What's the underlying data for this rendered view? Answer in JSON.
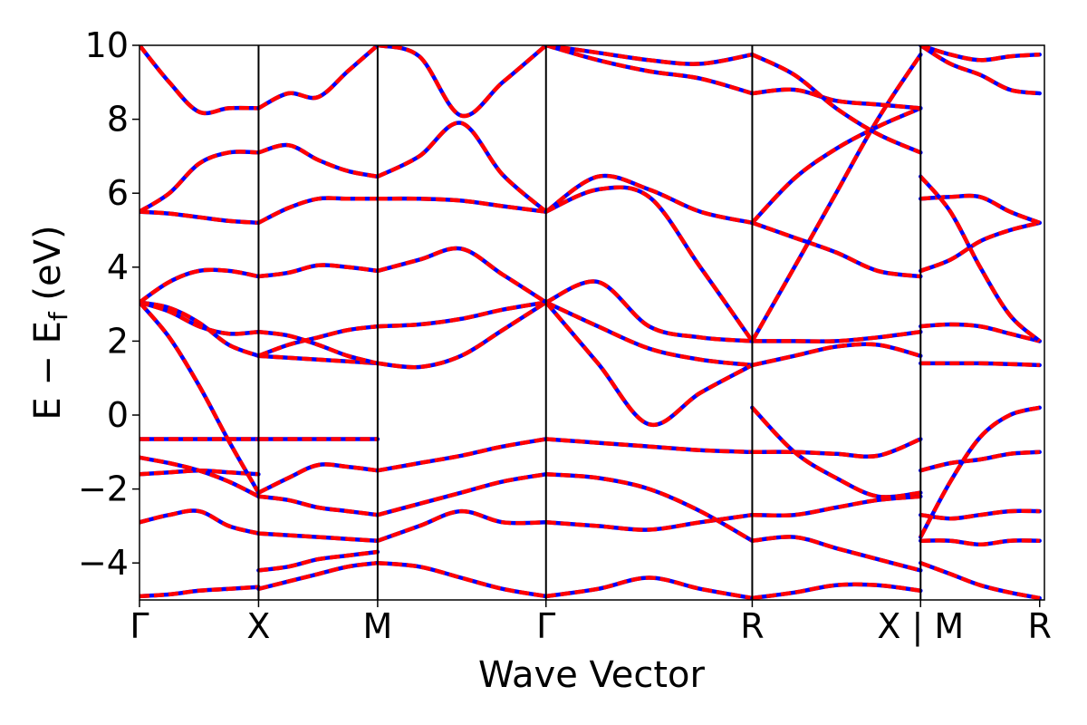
{
  "chart_data": {
    "type": "line",
    "xlabel": "Wave Vector",
    "ylabel_main": "E − E",
    "ylabel_sub": "f",
    "ylabel_unit": " (eV)",
    "ylim": [
      -5,
      10
    ],
    "yticks": [
      -4,
      -2,
      0,
      2,
      4,
      6,
      8,
      10
    ],
    "ytick_labels": [
      "−4",
      "−2",
      "0",
      "2",
      "4",
      "6",
      "8",
      "10"
    ],
    "xlim": [
      0,
      7.6
    ],
    "kpoints": [
      {
        "x": 0.0,
        "label": "Γ"
      },
      {
        "x": 1.0,
        "label": "X"
      },
      {
        "x": 2.0,
        "label": "M"
      },
      {
        "x": 3.414,
        "label": "Γ"
      },
      {
        "x": 5.146,
        "label": "R"
      },
      {
        "x": 6.56,
        "label": "X | M"
      },
      {
        "x": 7.56,
        "label": "R"
      }
    ],
    "colors": {
      "series_a": "#ff0000",
      "series_b": "#0000ff",
      "frame": "#000000"
    },
    "series": [
      {
        "segment": "Γ-X",
        "x": [
          0,
          0.25,
          0.5,
          0.75,
          1.0
        ],
        "bands": [
          [
            -4.9,
            -4.85,
            -4.75,
            -4.7,
            -4.65
          ],
          [
            -2.9,
            -2.7,
            -2.6,
            -3.0,
            -3.2
          ],
          [
            -1.6,
            -1.55,
            -1.5,
            -1.55,
            -1.6
          ],
          [
            -1.15,
            -1.3,
            -1.5,
            -1.8,
            -2.2
          ],
          [
            -0.65,
            -0.65,
            -0.65,
            -0.65,
            -0.65
          ],
          [
            3.05,
            2.1,
            0.8,
            -0.7,
            -2.1
          ],
          [
            3.05,
            2.9,
            2.5,
            1.9,
            1.6
          ],
          [
            3.05,
            2.8,
            2.4,
            2.2,
            2.25
          ],
          [
            3.05,
            3.6,
            3.9,
            3.9,
            3.75
          ],
          [
            5.5,
            5.45,
            5.35,
            5.25,
            5.2
          ],
          [
            5.5,
            6.0,
            6.8,
            7.1,
            7.1
          ],
          [
            10.0,
            9.0,
            8.2,
            8.3,
            8.3
          ]
        ]
      },
      {
        "segment": "X-M",
        "x": [
          1.0,
          1.25,
          1.5,
          1.75,
          2.0
        ],
        "bands": [
          [
            -4.7,
            -4.5,
            -4.3,
            -4.1,
            -4.0
          ],
          [
            -4.2,
            -4.1,
            -3.9,
            -3.8,
            -3.7
          ],
          [
            -3.2,
            -3.25,
            -3.3,
            -3.35,
            -3.4
          ],
          [
            -2.2,
            -2.3,
            -2.5,
            -2.6,
            -2.7
          ],
          [
            -2.1,
            -1.7,
            -1.35,
            -1.4,
            -1.5
          ],
          [
            -0.65,
            -0.65,
            -0.65,
            -0.65,
            -0.65
          ],
          [
            1.6,
            1.55,
            1.5,
            1.45,
            1.4
          ],
          [
            1.6,
            1.9,
            2.1,
            2.3,
            2.4
          ],
          [
            2.25,
            2.15,
            1.9,
            1.6,
            1.4
          ],
          [
            3.75,
            3.85,
            4.05,
            4.0,
            3.9
          ],
          [
            5.2,
            5.6,
            5.85,
            5.85,
            5.85
          ],
          [
            7.1,
            7.3,
            6.9,
            6.6,
            6.45
          ],
          [
            8.3,
            8.7,
            8.6,
            9.3,
            10.0
          ]
        ]
      },
      {
        "segment": "M-Γ",
        "x": [
          2.0,
          2.35,
          2.7,
          3.05,
          3.414
        ],
        "bands": [
          [
            -4.0,
            -4.1,
            -4.4,
            -4.7,
            -4.9
          ],
          [
            -3.4,
            -3.0,
            -2.6,
            -2.9,
            -2.9
          ],
          [
            -2.7,
            -2.4,
            -2.1,
            -1.8,
            -1.6
          ],
          [
            -1.5,
            -1.3,
            -1.1,
            -0.85,
            -0.65
          ],
          [
            1.4,
            1.3,
            1.6,
            2.3,
            3.05
          ],
          [
            2.4,
            2.45,
            2.6,
            2.85,
            3.05
          ],
          [
            3.9,
            4.2,
            4.5,
            3.8,
            3.05
          ],
          [
            5.85,
            5.85,
            5.8,
            5.65,
            5.5
          ],
          [
            6.45,
            7.0,
            7.9,
            6.5,
            5.5
          ],
          [
            10.0,
            9.7,
            8.1,
            9.0,
            10.0
          ]
        ]
      },
      {
        "segment": "Γ-R",
        "x": [
          3.414,
          3.85,
          4.28,
          4.71,
          5.146
        ],
        "bands": [
          [
            -4.9,
            -4.7,
            -4.4,
            -4.7,
            -4.95
          ],
          [
            -2.9,
            -3.0,
            -3.1,
            -2.9,
            -2.7
          ],
          [
            -1.6,
            -1.7,
            -2.0,
            -2.6,
            -3.4
          ],
          [
            -0.65,
            -0.75,
            -0.85,
            -0.95,
            -1.0
          ],
          [
            3.05,
            2.4,
            1.8,
            1.5,
            1.35
          ],
          [
            3.05,
            3.6,
            2.4,
            2.1,
            2.0
          ],
          [
            3.05,
            1.4,
            -0.25,
            0.6,
            1.35
          ],
          [
            5.5,
            6.45,
            6.1,
            5.5,
            5.2
          ],
          [
            5.5,
            6.1,
            5.9,
            4.0,
            2.0
          ],
          [
            10.0,
            9.6,
            9.3,
            9.1,
            8.7
          ],
          [
            10.0,
            9.8,
            9.6,
            9.5,
            9.75
          ]
        ]
      },
      {
        "segment": "R-X",
        "x": [
          5.146,
          5.5,
          5.85,
          6.2,
          6.56
        ],
        "bands": [
          [
            -4.95,
            -4.8,
            -4.6,
            -4.6,
            -4.75
          ],
          [
            -3.4,
            -3.3,
            -3.6,
            -3.9,
            -4.2
          ],
          [
            -2.7,
            -2.7,
            -2.5,
            -2.3,
            -2.2
          ],
          [
            -1.0,
            -1.0,
            -1.05,
            -1.1,
            -0.65
          ],
          [
            1.35,
            1.6,
            1.85,
            1.9,
            1.6
          ],
          [
            2.0,
            2.0,
            2.0,
            2.1,
            2.25
          ],
          [
            0.2,
            -1.0,
            -1.7,
            -2.2,
            -2.1
          ],
          [
            5.2,
            4.8,
            4.4,
            3.9,
            3.75
          ],
          [
            2.0,
            4.0,
            6.0,
            8.0,
            9.75
          ],
          [
            5.2,
            6.4,
            7.2,
            7.8,
            8.3
          ],
          [
            8.7,
            8.8,
            8.5,
            8.4,
            8.3
          ],
          [
            9.75,
            9.2,
            8.3,
            7.6,
            7.1
          ]
        ]
      },
      {
        "segment": "M-R",
        "x": [
          6.56,
          6.81,
          7.06,
          7.31,
          7.56
        ],
        "bands": [
          [
            -4.0,
            -4.3,
            -4.6,
            -4.8,
            -4.95
          ],
          [
            -3.4,
            -3.4,
            -3.5,
            -3.4,
            -3.4
          ],
          [
            -2.7,
            -2.8,
            -2.7,
            -2.6,
            -2.6
          ],
          [
            -1.5,
            -1.3,
            -1.2,
            -1.05,
            -1.0
          ],
          [
            1.4,
            1.4,
            1.4,
            1.38,
            1.35
          ],
          [
            2.4,
            2.45,
            2.4,
            2.2,
            2.0
          ],
          [
            -3.3,
            -1.8,
            -0.6,
            0.0,
            0.2
          ],
          [
            3.9,
            4.2,
            4.7,
            5.0,
            5.2
          ],
          [
            5.85,
            5.9,
            5.9,
            5.5,
            5.2
          ],
          [
            6.45,
            5.5,
            4.0,
            2.7,
            2.0
          ],
          [
            10.0,
            9.5,
            9.2,
            8.8,
            8.7
          ],
          [
            10.0,
            9.75,
            9.6,
            9.7,
            9.75
          ]
        ]
      }
    ]
  }
}
